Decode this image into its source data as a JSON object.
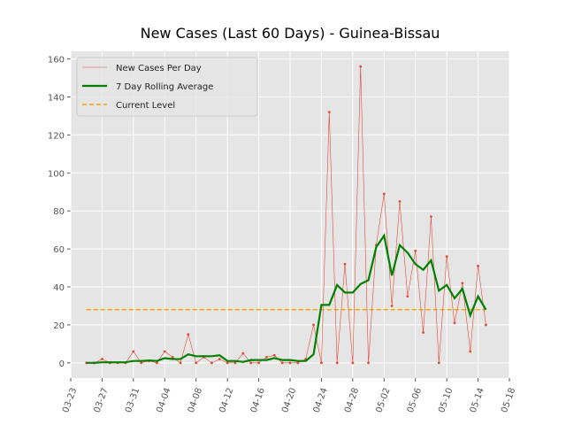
{
  "chart_data": {
    "type": "line",
    "title": "New Cases (Last 60 Days) - Guinea-Bissau",
    "x": [
      "03-25",
      "03-26",
      "03-27",
      "03-28",
      "03-29",
      "03-30",
      "03-31",
      "04-01",
      "04-02",
      "04-03",
      "04-04",
      "04-05",
      "04-06",
      "04-07",
      "04-08",
      "04-09",
      "04-10",
      "04-11",
      "04-12",
      "04-13",
      "04-14",
      "04-15",
      "04-16",
      "04-17",
      "04-18",
      "04-19",
      "04-20",
      "04-21",
      "04-22",
      "04-23",
      "04-24",
      "04-25",
      "04-26",
      "04-27",
      "04-28",
      "04-29",
      "04-30",
      "05-01",
      "05-02",
      "05-03",
      "05-04",
      "05-05",
      "05-06",
      "05-07",
      "05-08",
      "05-09",
      "05-10",
      "05-11",
      "05-12",
      "05-13",
      "05-14",
      "05-15"
    ],
    "series": [
      {
        "name": "New Cases Per Day",
        "color": "#e24a33",
        "style": "thin-marker",
        "values": [
          0,
          0,
          2,
          0,
          0,
          0,
          6,
          0,
          1,
          0,
          6,
          3,
          0,
          15,
          0,
          3,
          0,
          2,
          0,
          0,
          5,
          0,
          0,
          3,
          4,
          0,
          0,
          0,
          2,
          20,
          0,
          132,
          0,
          52,
          0,
          156,
          0,
          62,
          89,
          30,
          85,
          35,
          59,
          16,
          77,
          0,
          56,
          21,
          42,
          6,
          51,
          20
        ]
      },
      {
        "name": "7 Day Rolling Average",
        "color": "#008000",
        "style": "thick",
        "values": [
          0,
          0,
          0.3,
          0.3,
          0.3,
          0.3,
          1,
          1,
          1.3,
          1,
          2.5,
          2,
          2,
          4.5,
          3.5,
          3.5,
          3.5,
          4,
          1,
          1,
          0.5,
          1.5,
          1.5,
          1.5,
          2.5,
          1.5,
          1.5,
          1,
          1,
          4.5,
          30.5,
          30.5,
          41,
          37,
          37,
          41.5,
          43.5,
          61,
          67,
          46,
          62,
          58,
          52,
          49,
          54,
          38,
          41,
          34,
          39,
          25,
          35,
          28
        ]
      }
    ],
    "reference_line": {
      "name": "Current Level",
      "value": 28,
      "color": "#ffa500",
      "style": "dashed"
    },
    "xlim": [
      "03-23",
      "05-18"
    ],
    "xticks": [
      "03-23",
      "03-27",
      "03-31",
      "04-04",
      "04-08",
      "04-12",
      "04-16",
      "04-20",
      "04-24",
      "04-28",
      "05-02",
      "05-06",
      "05-10",
      "05-14",
      "05-18"
    ],
    "ylim": [
      -8,
      164
    ],
    "yticks": [
      0,
      20,
      40,
      60,
      80,
      100,
      120,
      140,
      160
    ],
    "grid": true,
    "legend": "upper left"
  }
}
